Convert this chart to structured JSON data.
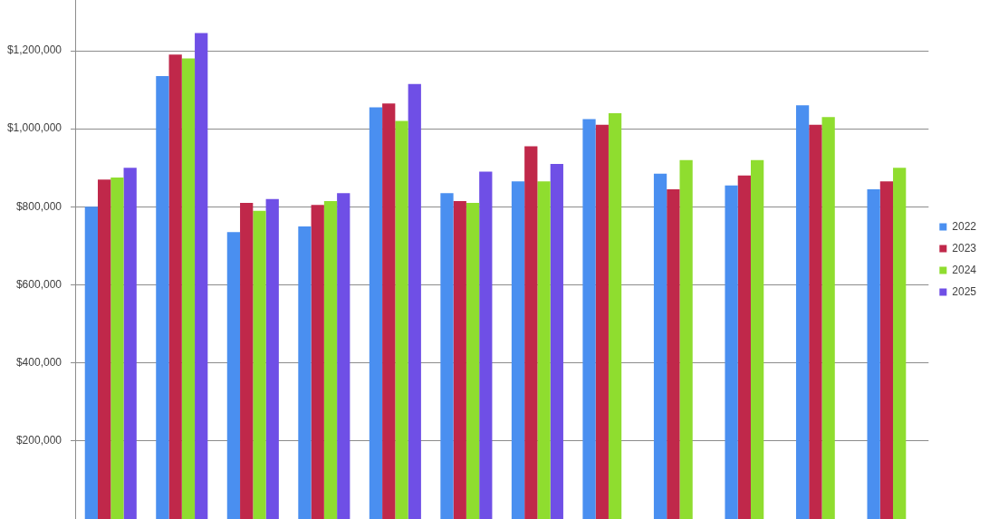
{
  "chart_data": {
    "type": "bar",
    "categories": [
      null,
      null,
      null,
      null,
      null,
      null,
      null,
      null,
      null,
      null,
      null,
      null
    ],
    "series": [
      {
        "name": "2022",
        "color": "#4a8ff0",
        "values": [
          800000,
          1135000,
          735000,
          750000,
          1055000,
          835000,
          865000,
          1025000,
          885000,
          855000,
          1060000,
          845000
        ]
      },
      {
        "name": "2023",
        "color": "#c0284a",
        "values": [
          870000,
          1190000,
          810000,
          805000,
          1065000,
          815000,
          955000,
          1010000,
          845000,
          880000,
          1010000,
          865000
        ]
      },
      {
        "name": "2024",
        "color": "#8fdd2f",
        "values": [
          875000,
          1180000,
          790000,
          815000,
          1020000,
          810000,
          865000,
          1040000,
          920000,
          920000,
          1030000,
          900000
        ]
      },
      {
        "name": "2025",
        "color": "#6f4fe6",
        "values": [
          900000,
          1245000,
          820000,
          835000,
          1115000,
          890000,
          910000,
          null,
          null,
          null,
          null,
          null
        ]
      }
    ],
    "ylim": [
      0,
      1330000
    ],
    "yticks": [
      {
        "value": 200000,
        "label": "$200,000"
      },
      {
        "value": 400000,
        "label": "$400,000"
      },
      {
        "value": 600000,
        "label": "$600,000"
      },
      {
        "value": 800000,
        "label": "$800,000"
      },
      {
        "value": 1000000,
        "label": "$1,000,000"
      },
      {
        "value": 1200000,
        "label": "$1,200,000"
      }
    ],
    "grid": "y",
    "legend": "right"
  }
}
